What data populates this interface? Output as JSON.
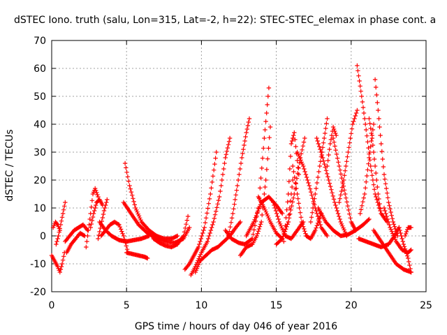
{
  "chart_data": {
    "type": "scatter",
    "title": "dSTEC Iono. truth (salu, Lon=315, Lat=-2, h=22): STEC-STEC_elemax in phase cont. a",
    "xlabel": "GPS time / hours of day 046 of year 2016",
    "ylabel": "dSTEC  / TECUs",
    "xlim": [
      0,
      25
    ],
    "ylim": [
      -20,
      70
    ],
    "xticks": [
      0,
      5,
      10,
      15,
      20,
      25
    ],
    "yticks": [
      -20,
      -10,
      0,
      10,
      20,
      30,
      40,
      50,
      60,
      70
    ],
    "grid": true,
    "legend": "none",
    "marker": "+",
    "color": "#ff0000",
    "series": [
      {
        "x": [
          0.0,
          0.2,
          0.4,
          0.55,
          0.7,
          0.85
        ],
        "y": [
          -7,
          -9,
          -11,
          -13,
          -10,
          -6
        ]
      },
      {
        "x": [
          0.3,
          0.45,
          0.6,
          0.75,
          0.9
        ],
        "y": [
          -3,
          0,
          4,
          8,
          12
        ]
      },
      {
        "x": [
          0.1,
          0.25,
          0.4,
          0.55
        ],
        "y": [
          3,
          5,
          4,
          2
        ]
      },
      {
        "x": [
          0.9,
          1.2,
          1.5,
          1.8,
          2.1,
          2.4
        ],
        "y": [
          -2,
          0,
          2,
          3,
          4,
          2
        ]
      },
      {
        "x": [
          1.0,
          1.3,
          1.6,
          1.9,
          2.2
        ],
        "y": [
          -6,
          -3,
          -1,
          1,
          0
        ]
      },
      {
        "x": [
          2.3,
          2.45,
          2.6,
          2.75,
          2.9,
          3.1
        ],
        "y": [
          -4,
          2,
          8,
          15,
          17,
          14
        ]
      },
      {
        "x": [
          2.6,
          2.8,
          3.0,
          3.2,
          3.4
        ],
        "y": [
          3,
          8,
          12,
          13,
          11
        ]
      },
      {
        "x": [
          3.1,
          3.3,
          3.5,
          3.7
        ],
        "y": [
          -1,
          4,
          9,
          13
        ]
      },
      {
        "x": [
          3.2,
          3.6,
          4.0,
          4.5,
          5.0,
          5.5,
          6.0,
          6.5
        ],
        "y": [
          5,
          2,
          0,
          -1.5,
          -2,
          -1.5,
          -1,
          0
        ]
      },
      {
        "x": [
          3.3,
          3.6,
          3.9,
          4.2,
          4.5,
          4.8,
          5.1
        ],
        "y": [
          0,
          2,
          4,
          5,
          4,
          0,
          -6
        ]
      },
      {
        "x": [
          5.0,
          5.4,
          5.8,
          6.2,
          6.4
        ],
        "y": [
          -6,
          -6.5,
          -7,
          -7.5,
          -8
        ]
      },
      {
        "x": [
          4.9,
          5.2,
          5.6,
          6.0,
          6.5,
          7.0,
          7.5,
          8.0,
          8.4
        ],
        "y": [
          26,
          18,
          10,
          5,
          2,
          0,
          -1,
          -1,
          0
        ]
      },
      {
        "x": [
          4.8,
          5.3,
          5.8,
          6.4,
          7.0,
          7.6,
          8.2,
          8.8,
          9.2
        ],
        "y": [
          12,
          8,
          4,
          1,
          -1,
          -2,
          -2.5,
          -1,
          3
        ]
      },
      {
        "x": [
          6.8,
          7.2,
          7.6,
          8.0,
          8.4,
          8.8,
          9.1
        ],
        "y": [
          -1,
          -2.5,
          -3.5,
          -4,
          -3,
          0,
          7
        ]
      },
      {
        "x": [
          8.9,
          9.2,
          9.5,
          9.8,
          10.2,
          10.6,
          11.0
        ],
        "y": [
          -12,
          -10,
          -7,
          -4,
          3,
          15,
          30
        ]
      },
      {
        "x": [
          9.3,
          9.6,
          10.0,
          10.4,
          10.8,
          11.2,
          11.6,
          11.9
        ],
        "y": [
          -14,
          -11,
          -6,
          -2,
          5,
          14,
          28,
          35
        ]
      },
      {
        "x": [
          9.6,
          9.9,
          10.3,
          10.7,
          11.1,
          11.5,
          11.9,
          12.3,
          12.6
        ],
        "y": [
          -13,
          -9,
          -7,
          -5,
          -4,
          -2,
          0,
          3,
          5
        ]
      },
      {
        "x": [
          11.8,
          12.1,
          12.4,
          12.7,
          13.0,
          13.2
        ],
        "y": [
          0,
          8,
          18,
          28,
          37,
          42
        ]
      },
      {
        "x": [
          11.6,
          12.0,
          12.5,
          12.9,
          13.4,
          13.8,
          14.2,
          14.5
        ],
        "y": [
          2,
          -1,
          -2.5,
          -3,
          -1,
          10,
          35,
          53
        ]
      },
      {
        "x": [
          12.6,
          13.0,
          13.4,
          13.7,
          14.0,
          14.3,
          14.6
        ],
        "y": [
          -7,
          -4,
          -3,
          0,
          5,
          20,
          39
        ]
      },
      {
        "x": [
          13.0,
          13.5,
          14.0,
          14.5,
          15.0,
          15.4
        ],
        "y": [
          0,
          5,
          12,
          14,
          11,
          8
        ]
      },
      {
        "x": [
          13.8,
          14.2,
          14.6,
          15.0,
          15.4,
          15.8,
          16.1
        ],
        "y": [
          14,
          10,
          5,
          1,
          -1,
          5,
          20
        ]
      },
      {
        "x": [
          14.8,
          15.2,
          15.6,
          16.0,
          16.4,
          16.8
        ],
        "y": [
          12,
          5,
          0,
          -1,
          2,
          5
        ]
      },
      {
        "x": [
          15.5,
          15.8,
          16.0,
          16.2,
          16.5
        ],
        "y": [
          -2,
          15,
          33,
          37,
          22
        ]
      },
      {
        "x": [
          15.0,
          15.4,
          15.8,
          16.2,
          16.6,
          16.9
        ],
        "y": [
          -3,
          -1,
          5,
          15,
          28,
          35
        ]
      },
      {
        "x": [
          16.1,
          16.4,
          16.7,
          17.0,
          17.3,
          17.6,
          18.0
        ],
        "y": [
          25,
          15,
          5,
          0,
          -1,
          2,
          8
        ]
      },
      {
        "x": [
          16.4,
          16.8,
          17.2,
          17.6,
          18.0,
          18.4
        ],
        "y": [
          30,
          25,
          18,
          10,
          3,
          0
        ]
      },
      {
        "x": [
          17.3,
          17.6,
          17.9,
          18.2,
          18.4
        ],
        "y": [
          5,
          15,
          25,
          35,
          42
        ]
      },
      {
        "x": [
          17.7,
          18.1,
          18.5,
          18.9,
          19.3,
          19.7
        ],
        "y": [
          35,
          28,
          20,
          12,
          5,
          0
        ]
      },
      {
        "x": [
          18.4,
          18.6,
          18.8,
          19.0
        ],
        "y": [
          25,
          33,
          39,
          36
        ]
      },
      {
        "x": [
          18.8,
          19.2,
          19.6,
          20.0,
          20.3
        ],
        "y": [
          35,
          25,
          15,
          5,
          2
        ]
      },
      {
        "x": [
          19.2,
          19.5,
          19.8,
          20.1,
          20.4
        ],
        "y": [
          12,
          20,
          30,
          40,
          45
        ]
      },
      {
        "x": [
          17.8,
          18.3,
          18.8,
          19.3,
          19.8,
          20.3,
          20.8,
          21.2
        ],
        "y": [
          10,
          5,
          2,
          0,
          0.5,
          2,
          4,
          6
        ]
      },
      {
        "x": [
          20.4,
          20.7,
          21.0,
          21.3,
          21.6,
          22.0,
          22.4
        ],
        "y": [
          61,
          50,
          38,
          25,
          15,
          8,
          5
        ]
      },
      {
        "x": [
          21.2,
          21.4,
          21.6,
          21.8,
          22.0
        ],
        "y": [
          42,
          35,
          25,
          15,
          8
        ]
      },
      {
        "x": [
          21.6,
          21.8,
          22.0,
          22.2,
          22.5,
          22.8,
          23.1
        ],
        "y": [
          56,
          45,
          33,
          22,
          12,
          5,
          0
        ]
      },
      {
        "x": [
          20.6,
          20.9,
          21.2,
          21.5
        ],
        "y": [
          8,
          15,
          28,
          40
        ]
      },
      {
        "x": [
          22.2,
          22.6,
          23.0,
          23.4,
          23.8,
          24.0
        ],
        "y": [
          10,
          3,
          -2,
          -5,
          -6,
          -5
        ]
      },
      {
        "x": [
          20.5,
          21.0,
          21.5,
          22.0,
          22.5,
          22.9,
          23.2
        ],
        "y": [
          -1,
          -2,
          -3,
          -4,
          -3,
          0,
          3
        ]
      },
      {
        "x": [
          23.2,
          23.5,
          23.8,
          24.0
        ],
        "y": [
          3,
          -3,
          -8,
          -13
        ]
      },
      {
        "x": [
          21.5,
          22.0,
          22.5,
          23.0,
          23.5,
          24.0
        ],
        "y": [
          2,
          -2,
          -6,
          -10,
          -12,
          -13
        ]
      },
      {
        "x": [
          23.6,
          23.8,
          24.0
        ],
        "y": [
          0,
          3,
          3
        ]
      }
    ]
  }
}
